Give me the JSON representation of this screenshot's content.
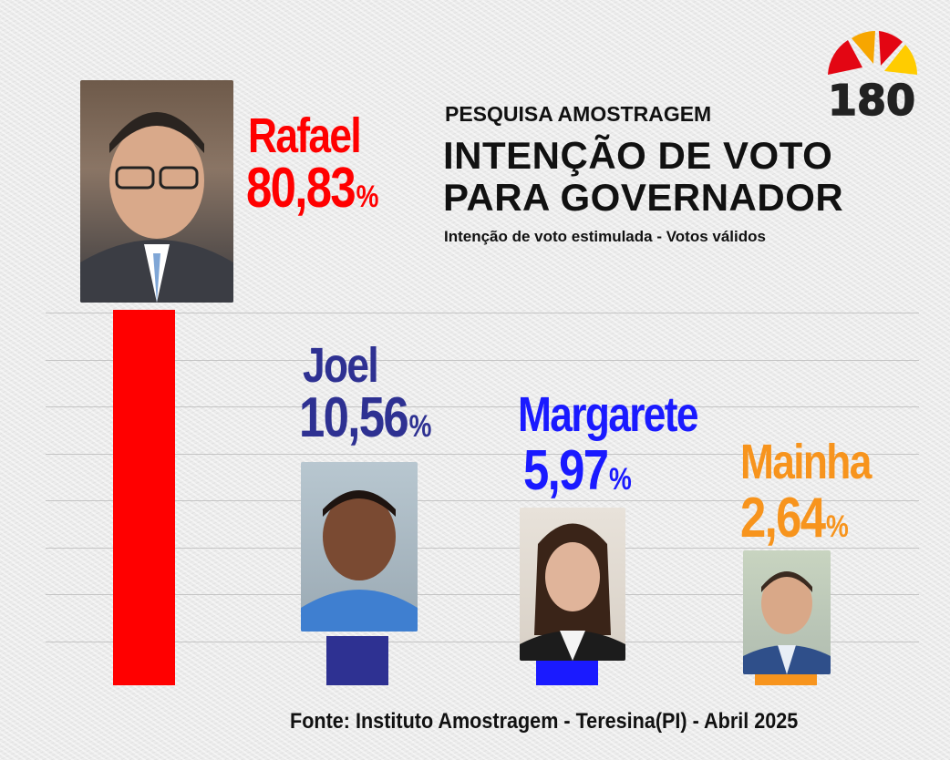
{
  "header": {
    "pesquisa": "PESQUISA AMOSTRAGEM",
    "title_line1": "INTENÇÃO DE VOTO",
    "title_line2": "PARA GOVERNADOR",
    "subtitle": "Intenção de voto estimulada - Votos válidos"
  },
  "logo": {
    "text": "180",
    "colors": [
      "#e30613",
      "#f7a600",
      "#ffcc00"
    ]
  },
  "source": "Fonte: Instituto Amostragem - Teresina(PI) - Abril 2025",
  "chart_data": {
    "type": "bar",
    "categories": [
      "Rafael",
      "Joel",
      "Margarete",
      "Mainha"
    ],
    "values": [
      80.83,
      10.56,
      5.97,
      2.64
    ],
    "value_labels": [
      "80,83",
      "10,56",
      "5,97",
      "2,64"
    ],
    "unit": "%",
    "colors": [
      "#ff0000",
      "#2e3192",
      "#1a1aff",
      "#f7941d"
    ],
    "grid": true,
    "ylim": [
      0,
      80.83
    ]
  }
}
